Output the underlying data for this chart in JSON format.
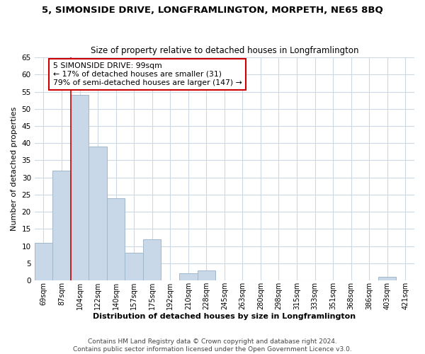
{
  "title": "5, SIMONSIDE DRIVE, LONGFRAMLINGTON, MORPETH, NE65 8BQ",
  "subtitle": "Size of property relative to detached houses in Longframlington",
  "xlabel": "Distribution of detached houses by size in Longframlington",
  "ylabel": "Number of detached properties",
  "bar_labels": [
    "69sqm",
    "87sqm",
    "104sqm",
    "122sqm",
    "140sqm",
    "157sqm",
    "175sqm",
    "192sqm",
    "210sqm",
    "228sqm",
    "245sqm",
    "263sqm",
    "280sqm",
    "298sqm",
    "315sqm",
    "333sqm",
    "351sqm",
    "368sqm",
    "386sqm",
    "403sqm",
    "421sqm"
  ],
  "bar_values": [
    11,
    32,
    54,
    39,
    24,
    8,
    12,
    0,
    2,
    3,
    0,
    0,
    0,
    0,
    0,
    0,
    0,
    0,
    0,
    1,
    0
  ],
  "bar_color": "#c8d8e8",
  "bar_edge_color": "#a0b8cc",
  "ylim": [
    0,
    65
  ],
  "yticks": [
    0,
    5,
    10,
    15,
    20,
    25,
    30,
    35,
    40,
    45,
    50,
    55,
    60,
    65
  ],
  "vline_x_idx": 2,
  "vline_color": "#cc0000",
  "annotation_title": "5 SIMONSIDE DRIVE: 99sqm",
  "annotation_line1": "← 17% of detached houses are smaller (31)",
  "annotation_line2": "79% of semi-detached houses are larger (147) →",
  "annotation_box_color": "#ffffff",
  "annotation_box_edge": "#cc0000",
  "footer1": "Contains HM Land Registry data © Crown copyright and database right 2024.",
  "footer2": "Contains public sector information licensed under the Open Government Licence v3.0.",
  "bg_color": "#ffffff",
  "grid_color": "#ccd8e4"
}
